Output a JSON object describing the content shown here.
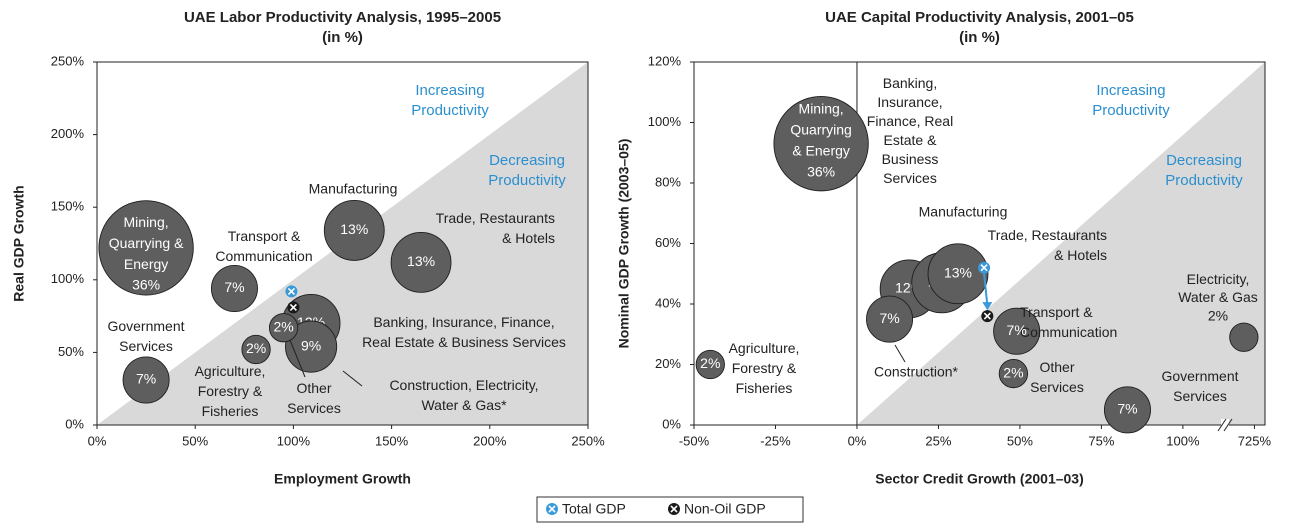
{
  "chart_data": [
    {
      "type": "bubble",
      "title": "UAE Labor Productivity Analysis, 1995–2005",
      "subtitle": "(in %)",
      "xlabel": "Employment Growth",
      "ylabel": "Real GDP Growth",
      "xlim": [
        0,
        250
      ],
      "ylim": [
        0,
        250
      ],
      "xticks": [
        {
          "value": 0,
          "label": "0%"
        },
        {
          "value": 50,
          "label": "50%"
        },
        {
          "value": 100,
          "label": "100%"
        },
        {
          "value": 150,
          "label": "150%"
        },
        {
          "value": 200,
          "label": "200%"
        },
        {
          "value": 250,
          "label": "250%"
        }
      ],
      "yticks": [
        {
          "value": 0,
          "label": "0%"
        },
        {
          "value": 50,
          "label": "50%"
        },
        {
          "value": 100,
          "label": "100%"
        },
        {
          "value": 150,
          "label": "150%"
        },
        {
          "value": 200,
          "label": "200%"
        },
        {
          "value": 250,
          "label": "250%"
        }
      ],
      "annotations": [
        "Increasing\nProductivity",
        "Decreasing\nProductivity"
      ],
      "names": [
        "Mining,\nQuarrying &\nEnergy",
        "Transport &\nCommunication",
        "Manufacturing",
        "Trade, Restaurants\n& Hotels",
        "Banking, Insurance, Finance,\nReal Estate & Business Services",
        "Construction, Electricity,\nWater & Gas*",
        "Government\nServices",
        "Agriculture,\nForestry &\nFisheries",
        "Other\nServices"
      ],
      "x": [
        25,
        70,
        131,
        165,
        109,
        109,
        25,
        81,
        95
      ],
      "y": [
        122,
        94,
        134,
        112,
        70,
        54,
        31,
        52,
        67
      ],
      "sizes": [
        36,
        7,
        13,
        13,
        12,
        9,
        7,
        2,
        2
      ],
      "size_labels": [
        "36%",
        "7%",
        "13%",
        "13%",
        "12%",
        "9%",
        "7%",
        "2%",
        "2%"
      ],
      "color": "#5e5e5e",
      "markers": [
        {
          "name": "Total GDP",
          "color": "#3a9ad9",
          "x": 99,
          "y": 92
        },
        {
          "name": "Non-Oil GDP",
          "color": "#1a1a1a",
          "x": 100,
          "y": 81
        }
      ]
    },
    {
      "type": "bubble",
      "title": "UAE Capital Productivity Analysis, 2001–05",
      "subtitle": "(in %)",
      "xlabel": "Sector Credit Growth (2001–03)",
      "ylabel": "Nominal GDP Growth (2003–05)",
      "xlim": [
        -50,
        727
      ],
      "x_break": [
        112,
        720
      ],
      "ylim": [
        0,
        120
      ],
      "xticks": [
        {
          "value": -50,
          "label": "-50%"
        },
        {
          "value": -25,
          "label": "-25%"
        },
        {
          "value": 0,
          "label": "0%"
        },
        {
          "value": 25,
          "label": "25%"
        },
        {
          "value": 50,
          "label": "50%"
        },
        {
          "value": 75,
          "label": "75%"
        },
        {
          "value": 100,
          "label": "100%"
        },
        {
          "value": 725,
          "label": "725%"
        }
      ],
      "yticks": [
        {
          "value": 0,
          "label": "0%"
        },
        {
          "value": 20,
          "label": "20%"
        },
        {
          "value": 40,
          "label": "40%"
        },
        {
          "value": 60,
          "label": "60%"
        },
        {
          "value": 80,
          "label": "80%"
        },
        {
          "value": 100,
          "label": "100%"
        },
        {
          "value": 120,
          "label": "120%"
        }
      ],
      "annotations": [
        "Increasing\nProductivity",
        "Decreasing\nProductivity"
      ],
      "names": [
        "Mining,\nQuarrying\n& Energy",
        "Banking,\nInsurance,\nFinance, Real\nEstate &\nBusiness\nServices",
        "Manufacturing",
        "Trade, Restaurants\n& Hotels",
        "Construction*",
        "Transport &\nCommunication",
        "Other\nServices",
        "Government\nServices",
        "Agriculture,\nForestry &\nFisheries",
        "Electricity,\nWater & Gas"
      ],
      "x": [
        -11,
        16,
        26,
        31,
        10,
        49,
        48,
        83,
        -45,
        723
      ],
      "y": [
        93,
        45,
        47,
        50,
        35,
        31,
        17,
        5,
        20,
        29
      ],
      "sizes": [
        36,
        12,
        13,
        13,
        7,
        7,
        2,
        7,
        2,
        2
      ],
      "size_labels": [
        "36%",
        "12%",
        "13%",
        "13%",
        "7%",
        "7%",
        "2%",
        "7%",
        "2%",
        "2%"
      ],
      "color": "#5e5e5e",
      "markers": [
        {
          "name": "Total GDP",
          "color": "#3a9ad9",
          "x": 39,
          "y": 52
        },
        {
          "name": "Non-Oil GDP",
          "color": "#1a1a1a",
          "x": 40,
          "y": 36
        }
      ]
    }
  ]
}
